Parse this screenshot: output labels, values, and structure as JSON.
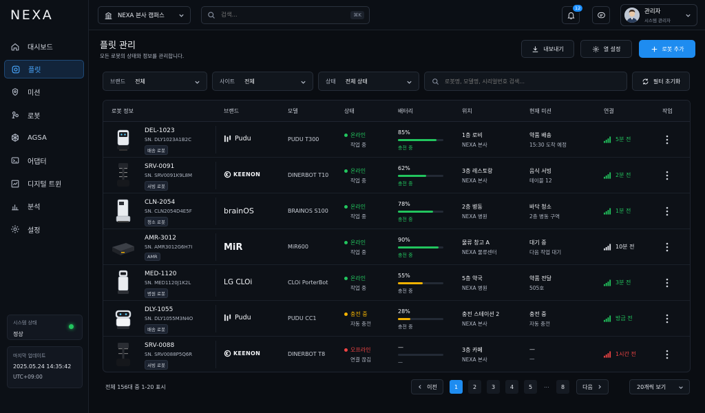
{
  "app": {
    "logo": "NEXA"
  },
  "sidebar": {
    "items": [
      {
        "label": "대시보드",
        "icon": "home-icon"
      },
      {
        "label": "플릿",
        "icon": "fleet-icon",
        "active": true
      },
      {
        "label": "미션",
        "icon": "target-icon"
      },
      {
        "label": "로봇",
        "icon": "robot-icon"
      },
      {
        "label": "AGSA",
        "icon": "network-icon"
      },
      {
        "label": "어댑터",
        "icon": "adapter-icon"
      },
      {
        "label": "디지털 트윈",
        "icon": "twin-icon"
      },
      {
        "label": "분석",
        "icon": "chart-icon"
      },
      {
        "label": "설정",
        "icon": "gear-icon"
      }
    ],
    "system_status": {
      "label": "시스템 상태",
      "value": "정상"
    },
    "last_update": {
      "label": "마지막 업데이트",
      "time": "2025.05.24 14:35:42",
      "tz": "UTC+09:00"
    }
  },
  "topbar": {
    "campus": "NEXA 본사 캠퍼스",
    "search_placeholder": "검색...",
    "search_shortcut": "⌘K",
    "notification_count": "12",
    "user": {
      "name": "관리자",
      "role": "시스템 관리자"
    }
  },
  "page": {
    "title": "플릿 관리",
    "subtitle": "모든 로봇의 상태와 정보를 관리합니다.",
    "export_label": "내보내기",
    "columns_label": "열 설정",
    "add_label": "로봇 추가"
  },
  "filters": {
    "brand": {
      "key": "브랜드",
      "value": "전체"
    },
    "site": {
      "key": "사이트",
      "value": "전체"
    },
    "status": {
      "key": "상태",
      "value": "전체 상태"
    },
    "search_placeholder": "로봇명, 모델명, 시리얼번호 검색...",
    "reset_label": "필터 초기화"
  },
  "table": {
    "headers": [
      "로봇 정보",
      "브랜드",
      "모델",
      "상태",
      "배터리",
      "위치",
      "현재 미션",
      "연결",
      "작업"
    ],
    "rows": [
      {
        "id": "DEL-1023",
        "sn": "SN. DLY1023A1B2C",
        "tag": "배송 로봇",
        "brand": "Pudu",
        "model": "PUDU T300",
        "status": "온라인",
        "status_sub": "작업 중",
        "status_color": "#22c55e",
        "battery": "85%",
        "battery_value": 85,
        "battery_color": "#22c55e",
        "battery_sub": "충전 중",
        "battery_sub_color": "#22c55e",
        "location": "1층 로비",
        "location_sub": "NEXA 본사",
        "mission": "약품 배송",
        "mission_sub": "15:30 도착 예정",
        "conn": "5분 전",
        "conn_color": "#22c55e",
        "robot": "delivery"
      },
      {
        "id": "SRV-0091",
        "sn": "SN. SRV0091K9L8M",
        "tag": "서빙 로봇",
        "brand": "KEENON",
        "model": "DINERBOT T10",
        "status": "온라인",
        "status_sub": "작업 중",
        "status_color": "#22c55e",
        "battery": "62%",
        "battery_value": 62,
        "battery_color": "#22c55e",
        "battery_sub": "충전 중",
        "battery_sub_color": "#22c55e",
        "location": "3층 레스토랑",
        "location_sub": "NEXA 본사",
        "mission": "음식 서빙",
        "mission_sub": "테이블 12",
        "conn": "2분 전",
        "conn_color": "#22c55e",
        "robot": "serving"
      },
      {
        "id": "CLN-2054",
        "sn": "SN. CLN2054D4E5F",
        "tag": "청소 로봇",
        "brand": "brainOS",
        "model": "BRAINOS S100",
        "status": "온라인",
        "status_sub": "작업 중",
        "status_color": "#22c55e",
        "battery": "78%",
        "battery_value": 78,
        "battery_color": "#22c55e",
        "battery_sub": "충전 중",
        "battery_sub_color": "#22c55e",
        "location": "2층 병동",
        "location_sub": "NEXA 병원",
        "mission": "바닥 청소",
        "mission_sub": "2층 병동 구역",
        "conn": "1분 전",
        "conn_color": "#22c55e",
        "robot": "cleaning"
      },
      {
        "id": "AMR-3012",
        "sn": "SN. AMR3012G6H7I",
        "tag": "AMR",
        "brand": "MiR",
        "model": "MiR600",
        "status": "온라인",
        "status_sub": "작업 중",
        "status_color": "#22c55e",
        "battery": "90%",
        "battery_value": 90,
        "battery_color": "#22c55e",
        "battery_sub": "충전 중",
        "battery_sub_color": "#22c55e",
        "location": "물류 창고 A",
        "location_sub": "NEXA 물류센터",
        "mission": "대기 중",
        "mission_sub": "다음 작업 대기",
        "conn": "10분 전",
        "conn_color": "#e6e9ef",
        "robot": "amr"
      },
      {
        "id": "MED-1120",
        "sn": "SN. MED1120J1K2L",
        "tag": "병원 로봇",
        "brand": "LG CLOi",
        "model": "CLOi PorterBot",
        "status": "온라인",
        "status_sub": "작업 중",
        "status_color": "#22c55e",
        "battery": "55%",
        "battery_value": 55,
        "battery_color": "#f5b301",
        "battery_sub": "충전 중",
        "battery_sub_color": "#aeb5c2",
        "location": "5층 약국",
        "location_sub": "NEXA 병원",
        "mission": "약품 전달",
        "mission_sub": "505호",
        "conn": "3분 전",
        "conn_color": "#22c55e",
        "robot": "medical"
      },
      {
        "id": "DLY-1055",
        "sn": "SN. DLY1055M3N4O",
        "tag": "배송 로봇",
        "brand": "Pudu",
        "model": "PUDU CC1",
        "status": "충전 중",
        "status_sub": "자동 충전",
        "status_color": "#f5b301",
        "battery": "28%",
        "battery_value": 28,
        "battery_color": "#f5b301",
        "battery_sub": "충전 중",
        "battery_sub_color": "#aeb5c2",
        "location": "충전 스테이션 2",
        "location_sub": "NEXA 본사",
        "mission": "충전 중",
        "mission_sub": "자동 충전",
        "conn": "방금 전",
        "conn_color": "#22c55e",
        "robot": "pudu-cc1"
      },
      {
        "id": "SRV-0088",
        "sn": "SN. SRV0088P5Q6R",
        "tag": "서빙 로봇",
        "brand": "KEENON",
        "model": "DINERBOT T8",
        "status": "오프라인",
        "status_sub": "연결 끊김",
        "status_color": "#ef4444",
        "battery": "—",
        "battery_value": 0,
        "battery_color": "#232a35",
        "battery_sub": "—",
        "battery_sub_color": "#aeb5c2",
        "location": "3층 카페",
        "location_sub": "NEXA 본사",
        "mission": "—",
        "mission_sub": "—",
        "conn": "1시간 전",
        "conn_color": "#ef4444",
        "robot": "serving-dark"
      }
    ]
  },
  "pagination": {
    "total": "전체 156대 중 1-20 표시",
    "prev": "이전",
    "next": "다음",
    "pages": [
      "1",
      "2",
      "3",
      "4",
      "5"
    ],
    "last": "8",
    "dots": "...",
    "active": "1",
    "per_page": "20개씩 보기"
  }
}
